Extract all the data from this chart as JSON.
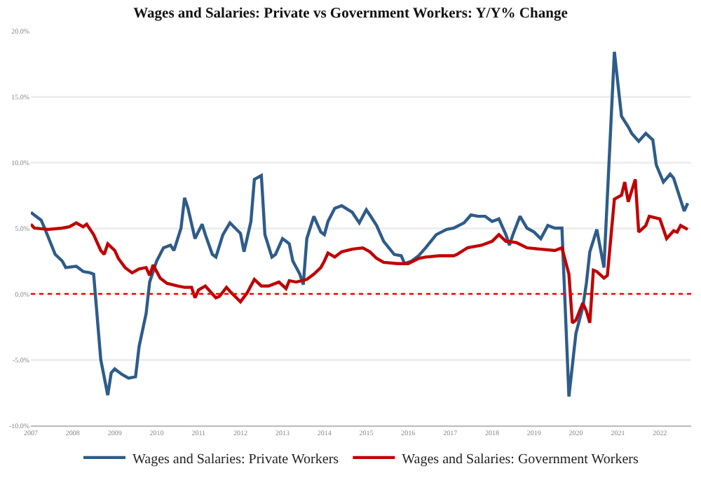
{
  "chart_data": {
    "type": "line",
    "title": "Wages and Salaries: Private vs Government Workers: Y/Y% Change",
    "xlim": [
      "2007-01",
      "2022-10"
    ],
    "xticks": [
      "2007",
      "2008",
      "2009",
      "2010",
      "2011",
      "2012",
      "2013",
      "2014",
      "2015",
      "2016",
      "2017",
      "2018",
      "2019",
      "2020",
      "2021",
      "2022"
    ],
    "ylim": [
      -10,
      20
    ],
    "yticks": [
      {
        "value": -10,
        "label": "-10.0%"
      },
      {
        "value": -5,
        "label": "-5.0%"
      },
      {
        "value": 0,
        "label": "0.0%"
      },
      {
        "value": 5,
        "label": "5.0%"
      },
      {
        "value": 10,
        "label": "10.0%"
      },
      {
        "value": 15,
        "label": "15.0%"
      },
      {
        "value": 20,
        "label": "20.0%"
      }
    ],
    "grid": "y",
    "legend": "bottom",
    "marker": "none",
    "line_style": "solid",
    "ref_lines": [
      {
        "axis": "y",
        "value": 0,
        "color": "#ff0000",
        "line_style": "dotted"
      }
    ],
    "series": [
      {
        "name": "Wages and Salaries: Private Workers",
        "color": "#2e5c8a",
        "x": [
          "2007-01",
          "2007-04",
          "2007-05",
          "2007-08",
          "2007-10",
          "2007-11",
          "2008-02",
          "2008-04",
          "2008-06",
          "2008-07",
          "2008-09",
          "2008-11",
          "2008-12",
          "2009-01",
          "2009-03",
          "2009-05",
          "2009-07",
          "2009-08",
          "2009-10",
          "2009-11",
          "2010-01",
          "2010-03",
          "2010-05",
          "2010-06",
          "2010-08",
          "2010-09",
          "2010-10",
          "2010-12",
          "2011-02",
          "2011-03",
          "2011-05",
          "2011-06",
          "2011-08",
          "2011-10",
          "2012-01",
          "2012-02",
          "2012-04",
          "2012-05",
          "2012-07",
          "2012-08",
          "2012-10",
          "2012-11",
          "2013-01",
          "2013-02",
          "2013-03",
          "2013-04",
          "2013-06",
          "2013-07",
          "2013-08",
          "2013-10",
          "2013-12",
          "2014-01",
          "2014-02",
          "2014-04",
          "2014-06",
          "2014-09",
          "2014-11",
          "2015-01",
          "2015-02",
          "2015-04",
          "2015-06",
          "2015-09",
          "2015-11",
          "2015-12",
          "2016-02",
          "2016-04",
          "2016-06",
          "2016-09",
          "2016-12",
          "2017-02",
          "2017-05",
          "2017-07",
          "2017-09",
          "2017-11",
          "2018-01",
          "2018-03",
          "2018-05",
          "2018-06",
          "2018-07",
          "2018-09",
          "2018-11",
          "2019-01",
          "2019-03",
          "2019-05",
          "2019-07",
          "2019-09",
          "2019-11",
          "2020-01",
          "2020-03",
          "2020-04",
          "2020-05",
          "2020-07",
          "2020-09",
          "2020-12",
          "2021-02",
          "2021-04",
          "2021-05",
          "2021-07",
          "2021-09",
          "2021-11",
          "2021-12",
          "2022-02",
          "2022-04",
          "2022-05",
          "2022-08",
          "2022-09"
        ],
        "values": [
          6.2,
          5.6,
          5.0,
          3.0,
          2.5,
          2.0,
          2.1,
          1.7,
          1.6,
          1.5,
          -5.0,
          -7.7,
          -6.0,
          -5.7,
          -6.1,
          -6.4,
          -6.3,
          -4.0,
          -1.5,
          0.9,
          2.5,
          3.5,
          3.7,
          3.3,
          5.0,
          7.3,
          6.5,
          4.2,
          5.3,
          4.5,
          3.0,
          2.8,
          4.5,
          5.4,
          4.6,
          3.2,
          5.5,
          8.7,
          9.0,
          4.5,
          2.8,
          3.0,
          4.2,
          4.0,
          3.8,
          2.5,
          1.5,
          0.7,
          4.2,
          5.9,
          4.7,
          4.5,
          5.5,
          6.5,
          6.7,
          6.2,
          5.4,
          6.4,
          6.0,
          5.2,
          4.0,
          3.0,
          2.9,
          2.3,
          2.5,
          2.9,
          3.5,
          4.5,
          4.9,
          5.0,
          5.4,
          6.0,
          5.9,
          5.9,
          5.5,
          5.7,
          4.5,
          3.7,
          4.5,
          5.9,
          5.0,
          4.7,
          4.2,
          5.2,
          5.0,
          5.0,
          -7.8,
          -3.0,
          -1.0,
          0.8,
          3.2,
          4.9,
          2.0,
          18.4,
          13.5,
          12.7,
          12.2,
          11.6,
          12.2,
          11.7,
          9.8,
          8.5,
          9.1,
          8.8,
          6.3,
          6.9
        ]
      },
      {
        "name": "Wages and Salaries: Government Workers",
        "color": "#c00000",
        "x": [
          "2007-01",
          "2007-02",
          "2007-06",
          "2007-10",
          "2007-12",
          "2008-02",
          "2008-04",
          "2008-05",
          "2008-07",
          "2008-09",
          "2008-10",
          "2008-11",
          "2009-01",
          "2009-02",
          "2009-04",
          "2009-06",
          "2009-08",
          "2009-10",
          "2009-11",
          "2009-12",
          "2010-02",
          "2010-04",
          "2010-07",
          "2010-09",
          "2010-11",
          "2010-12",
          "2011-01",
          "2011-03",
          "2011-05",
          "2011-06",
          "2011-07",
          "2011-09",
          "2011-10",
          "2012-01",
          "2012-03",
          "2012-05",
          "2012-07",
          "2012-09",
          "2012-12",
          "2013-02",
          "2013-03",
          "2013-05",
          "2013-08",
          "2013-10",
          "2013-12",
          "2014-01",
          "2014-02",
          "2014-04",
          "2014-06",
          "2014-09",
          "2014-12",
          "2015-02",
          "2015-04",
          "2015-06",
          "2015-10",
          "2016-01",
          "2016-04",
          "2016-06",
          "2016-10",
          "2017-02",
          "2017-03",
          "2017-06",
          "2017-10",
          "2018-01",
          "2018-03",
          "2018-05",
          "2018-08",
          "2018-11",
          "2019-03",
          "2019-07",
          "2019-09",
          "2019-11",
          "2019-12",
          "2020-01",
          "2020-03",
          "2020-04",
          "2020-05",
          "2020-06",
          "2020-07",
          "2020-09",
          "2020-10",
          "2020-12",
          "2021-02",
          "2021-03",
          "2021-04",
          "2021-06",
          "2021-07",
          "2021-09",
          "2021-10",
          "2022-01",
          "2022-03",
          "2022-05",
          "2022-06",
          "2022-07",
          "2022-09"
        ],
        "values": [
          5.3,
          5.0,
          4.9,
          5.0,
          5.1,
          5.4,
          5.1,
          5.3,
          4.5,
          3.3,
          3.0,
          3.8,
          3.3,
          2.7,
          2.0,
          1.6,
          1.9,
          2.0,
          1.4,
          2.2,
          1.2,
          0.8,
          0.6,
          0.5,
          0.5,
          -0.3,
          0.3,
          0.6,
          0.0,
          -0.3,
          -0.2,
          0.5,
          0.2,
          -0.6,
          0.1,
          1.1,
          0.6,
          0.6,
          0.9,
          0.4,
          1.0,
          0.9,
          1.1,
          1.5,
          2.0,
          2.5,
          3.1,
          2.8,
          3.2,
          3.4,
          3.5,
          3.2,
          2.7,
          2.4,
          2.3,
          2.3,
          2.7,
          2.8,
          2.9,
          2.9,
          3.0,
          3.5,
          3.7,
          4.0,
          4.5,
          4.0,
          3.9,
          3.5,
          3.4,
          3.3,
          3.5,
          1.5,
          -2.2,
          -2.0,
          -0.7,
          -1.3,
          -2.2,
          1.8,
          1.7,
          1.2,
          1.4,
          7.2,
          7.5,
          8.5,
          7.0,
          8.7,
          4.7,
          5.2,
          5.9,
          5.7,
          4.2,
          4.8,
          4.7,
          5.2,
          4.9
        ]
      }
    ]
  }
}
